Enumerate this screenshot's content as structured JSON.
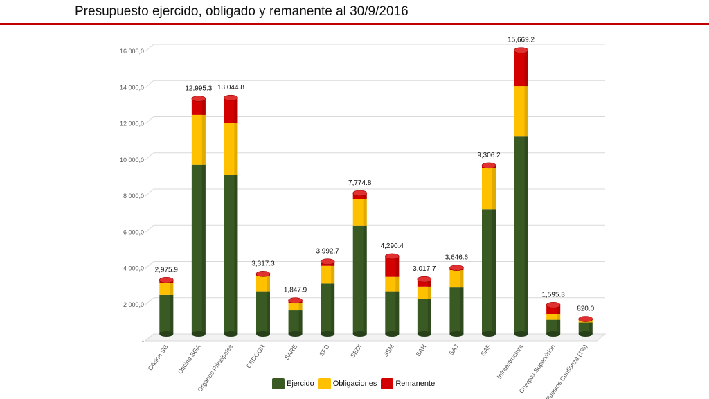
{
  "title": "Presupuesto ejercido, obligado y remanente al 30/9/2016",
  "colors": {
    "ejercido": "#3a5a24",
    "obligaciones": "#ffc000",
    "remanente": "#d40000",
    "title_rule": "#c00000"
  },
  "chart_data": {
    "type": "bar",
    "stacked": true,
    "categories": [
      "Oficina SG",
      "Oficina SGA",
      "Organos Principales",
      "CEDOGR",
      "SARE",
      "SFD",
      "SEDI",
      "SSM",
      "SAH",
      "SAJ",
      "SAF",
      "Infraestructura",
      "Cuerpos Supervision",
      "Puestos Confianza (1%)"
    ],
    "series": [
      {
        "name": "Ejercido",
        "values": [
          2150,
          9350,
          8780,
          2350,
          1300,
          2780,
          5980,
          2350,
          1950,
          2560,
          6880,
          10900,
          780,
          630
        ]
      },
      {
        "name": "Obligaciones",
        "values": [
          650,
          2750,
          2870,
          870,
          420,
          980,
          1480,
          800,
          660,
          960,
          2270,
          2800,
          330,
          150
        ]
      },
      {
        "name": "Remanente",
        "values": [
          175.9,
          895.3,
          1394.8,
          97.3,
          127.9,
          232.7,
          314.8,
          1140.4,
          407.7,
          126.6,
          156.2,
          1969.2,
          485.3,
          40.0
        ]
      }
    ],
    "totals": [
      "2,975.9",
      "12,995.3",
      "13,044.8",
      "3,317.3",
      "1,847.9",
      "3,992.7",
      "7,774.8",
      "4,290.4",
      "3,017.7",
      "3,646.6",
      "9,306.2",
      "15,669.2",
      "1,595.3",
      "820.0"
    ],
    "y_ticks": [
      0,
      2000,
      4000,
      6000,
      8000,
      10000,
      12000,
      14000,
      16000
    ],
    "y_tick_labels": [
      "-",
      "2 000,0",
      "4 000,0",
      "6 000,0",
      "8 000,0",
      "10 000,0",
      "12 000,0",
      "14 000,0",
      "16 000,0"
    ],
    "ylim": [
      0,
      16000
    ],
    "grid": true,
    "legend_position": "bottom"
  }
}
